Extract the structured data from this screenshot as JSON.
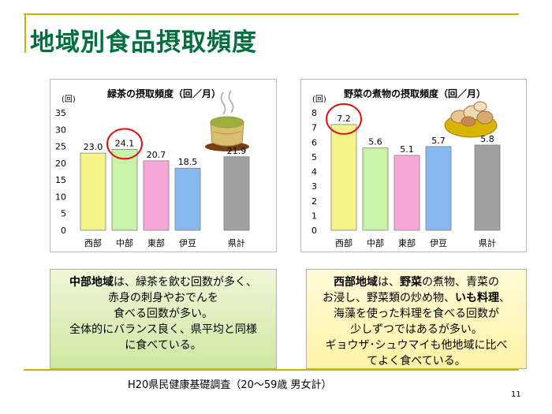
{
  "title": "地域別食品摂取頻度",
  "chart_data": [
    {
      "type": "bar",
      "title": "緑茶の摂取頻度（回／月）",
      "unit_label": "(回)",
      "categories": [
        "西部",
        "中部",
        "東部",
        "伊豆",
        "県計"
      ],
      "values": [
        23.0,
        24.1,
        20.7,
        18.5,
        21.9
      ],
      "value_labels": [
        "23.0",
        "24.1",
        "20.7",
        "18.5",
        "21.9"
      ],
      "bar_colors": [
        "#f4f48a",
        "#c9f3a8",
        "#f7a8d8",
        "#88b8f0",
        "#a0a0a0"
      ],
      "highlight_index": 1,
      "ylim": [
        0,
        35
      ],
      "yticks": [
        0,
        5,
        10,
        15,
        20,
        25,
        30,
        35
      ],
      "gap_before_last": true
    },
    {
      "type": "bar",
      "title": "野菜の煮物の摂取頻度（回／月）",
      "unit_label": "(回)",
      "categories": [
        "西部",
        "中部",
        "東部",
        "伊豆",
        "県計"
      ],
      "values": [
        7.2,
        5.6,
        5.1,
        5.7,
        5.8
      ],
      "value_labels": [
        "7.2",
        "5.6",
        "5.1",
        "5.7",
        "5.8"
      ],
      "bar_colors": [
        "#f4f48a",
        "#c9f3a8",
        "#f7a8d8",
        "#88b8f0",
        "#a0a0a0"
      ],
      "highlight_index": 0,
      "ylim": [
        0,
        8
      ],
      "yticks": [
        0,
        1,
        2,
        3,
        4,
        5,
        6,
        7,
        8
      ],
      "gap_before_last": true
    }
  ],
  "notes": {
    "left": {
      "l1_bold": "中部地域",
      "l1_rest": "は、緑茶を飲む回数が多く、",
      "l2": "赤身の刺身やおでんを",
      "l3": "食べる回数が多い。",
      "l4": "全体的にバランス良く、県平均と同様",
      "l5": "に食べている。"
    },
    "right": {
      "l1_bold": "西部地域",
      "l1_mid": "は、",
      "l1_bold2": "野菜",
      "l1_rest": "の煮物、青菜の",
      "l2_a": "お浸し、野菜類の炒め物、",
      "l2_bold": "いも料理",
      "l2_b": "、",
      "l3": "海藻を使った料理を食べる回数が",
      "l4": "少しずつではあるが多い。",
      "l5": "ギョウザ･シュウマイも他地域に比べ",
      "l6": "てよく食べている。"
    }
  },
  "footer": {
    "source": "H20県民健康基礎調査（20～59歳 男女計）",
    "page": "11"
  },
  "colors": {
    "title": "#00703c",
    "frame": "#c8b400",
    "highlight_circle": "#dd1111"
  },
  "icons": [
    "green-tea-cup-icon",
    "simmered-vegetables-bowl-icon"
  ]
}
